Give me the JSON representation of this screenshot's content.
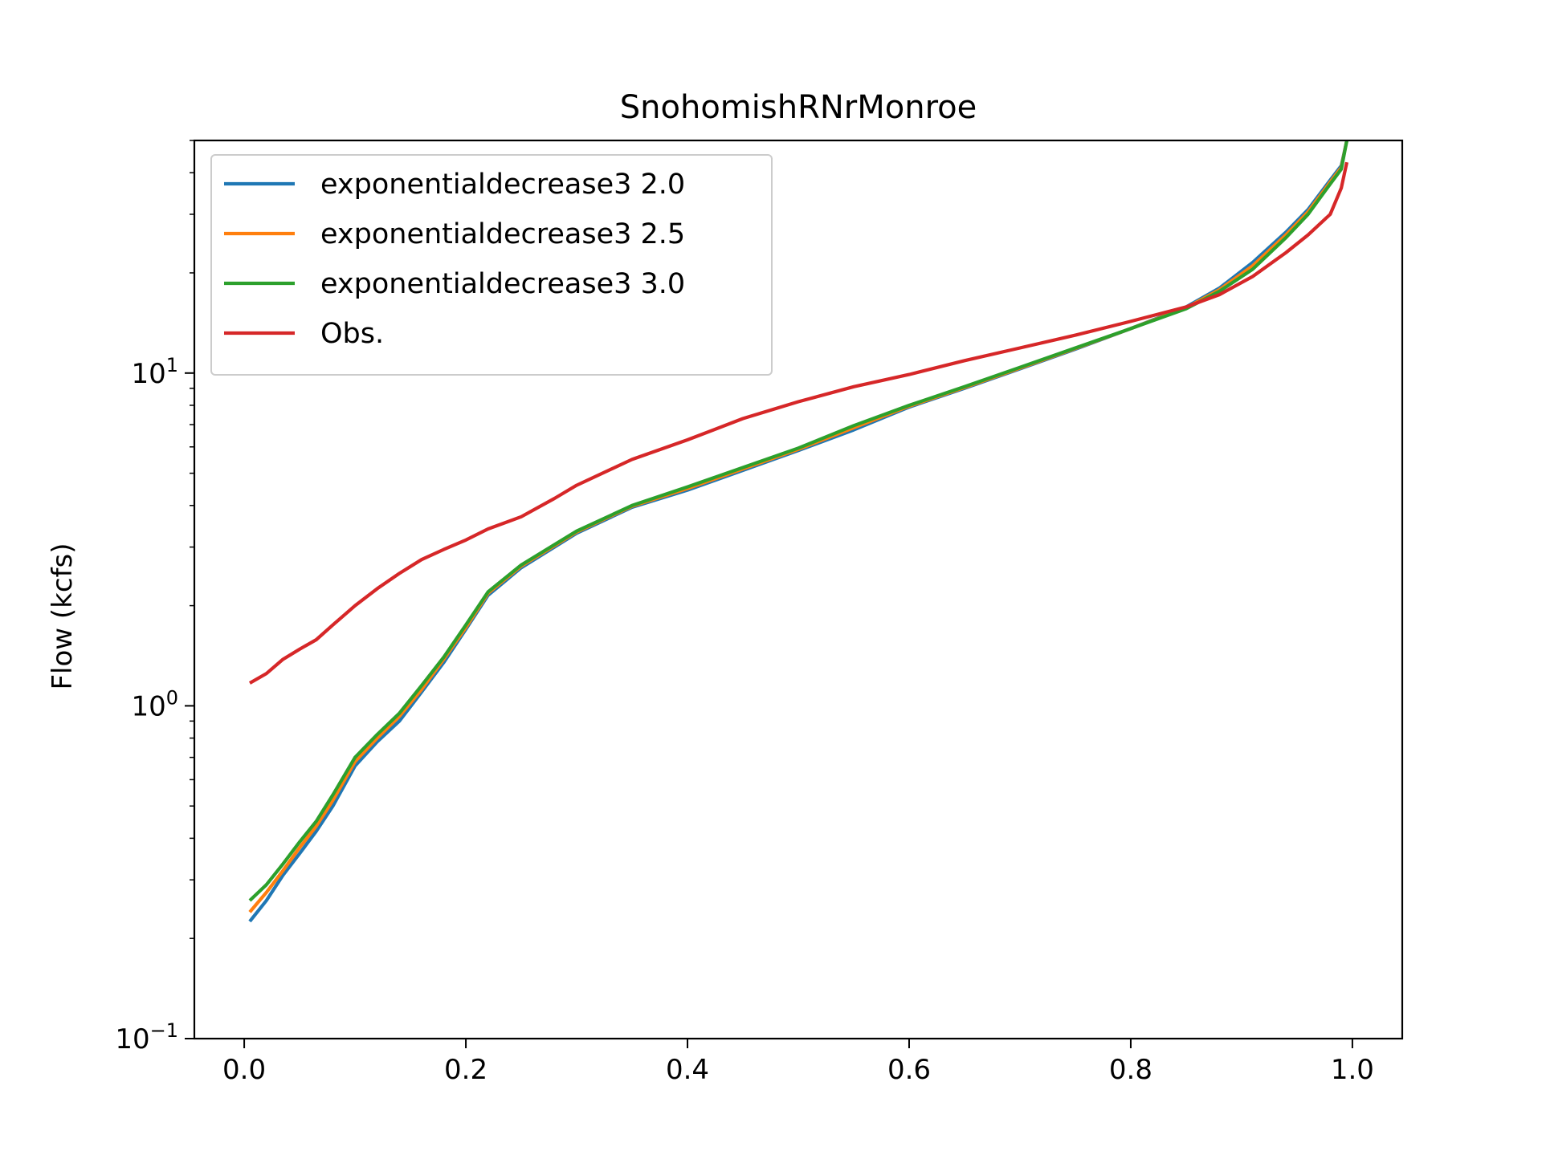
{
  "chart_data": {
    "type": "line",
    "title": "SnohomishRNrMonroe",
    "xlabel": "",
    "ylabel": "Flow (kcfs)",
    "yscale": "log",
    "xlim": [
      -0.045,
      1.045
    ],
    "ylim": [
      0.1,
      50
    ],
    "grid": false,
    "legend_location": "upper left",
    "x_ticks": [
      {
        "value": 0.0,
        "label": "0.0"
      },
      {
        "value": 0.2,
        "label": "0.2"
      },
      {
        "value": 0.4,
        "label": "0.4"
      },
      {
        "value": 0.6,
        "label": "0.6"
      },
      {
        "value": 0.8,
        "label": "0.8"
      },
      {
        "value": 1.0,
        "label": "1.0"
      }
    ],
    "y_ticks": [
      {
        "value": 0.1,
        "base": "10",
        "exponent": "−1"
      },
      {
        "value": 1,
        "base": "10",
        "exponent": "0"
      },
      {
        "value": 10,
        "base": "10",
        "exponent": "1"
      }
    ],
    "x": [
      0.005,
      0.02,
      0.035,
      0.05,
      0.065,
      0.08,
      0.1,
      0.12,
      0.14,
      0.16,
      0.18,
      0.2,
      0.22,
      0.25,
      0.28,
      0.3,
      0.35,
      0.4,
      0.45,
      0.5,
      0.55,
      0.6,
      0.65,
      0.7,
      0.75,
      0.8,
      0.85,
      0.88,
      0.91,
      0.94,
      0.96,
      0.98,
      0.99,
      0.995
    ],
    "series": [
      {
        "name": "exponentialdecrease3 2.0",
        "color": "#1f77b4",
        "values": [
          0.225,
          0.26,
          0.31,
          0.36,
          0.42,
          0.5,
          0.66,
          0.78,
          0.9,
          1.1,
          1.35,
          1.7,
          2.15,
          2.6,
          3.0,
          3.3,
          3.95,
          4.45,
          5.1,
          5.85,
          6.75,
          7.9,
          9.0,
          10.3,
          11.8,
          13.6,
          15.8,
          18.0,
          21.5,
          26.5,
          31.0,
          38.0,
          42.0,
          50.0
        ]
      },
      {
        "name": "exponentialdecrease3 2.5",
        "color": "#ff7f0e",
        "values": [
          0.24,
          0.275,
          0.32,
          0.375,
          0.435,
          0.52,
          0.68,
          0.8,
          0.93,
          1.12,
          1.38,
          1.72,
          2.18,
          2.63,
          3.03,
          3.33,
          3.98,
          4.5,
          5.15,
          5.9,
          6.85,
          7.95,
          9.05,
          10.35,
          11.85,
          13.6,
          15.7,
          17.8,
          21.0,
          26.0,
          30.5,
          37.5,
          41.5,
          50.0
        ]
      },
      {
        "name": "exponentialdecrease3 3.0",
        "color": "#2ca02c",
        "values": [
          0.26,
          0.29,
          0.335,
          0.39,
          0.45,
          0.54,
          0.7,
          0.82,
          0.95,
          1.15,
          1.4,
          1.75,
          2.2,
          2.65,
          3.05,
          3.35,
          4.0,
          4.55,
          5.2,
          5.95,
          6.95,
          8.0,
          9.1,
          10.4,
          11.9,
          13.6,
          15.6,
          17.6,
          20.5,
          25.5,
          30.0,
          37.0,
          41.0,
          50.0
        ]
      },
      {
        "name": "Obs.",
        "color": "#d62728",
        "values": [
          1.17,
          1.25,
          1.38,
          1.48,
          1.58,
          1.75,
          2.0,
          2.25,
          2.5,
          2.75,
          2.95,
          3.15,
          3.4,
          3.7,
          4.2,
          4.6,
          5.5,
          6.3,
          7.3,
          8.2,
          9.1,
          9.9,
          10.9,
          11.9,
          13.0,
          14.3,
          15.8,
          17.2,
          19.5,
          23.0,
          26.0,
          30.0,
          36.0,
          43.0
        ]
      }
    ]
  }
}
